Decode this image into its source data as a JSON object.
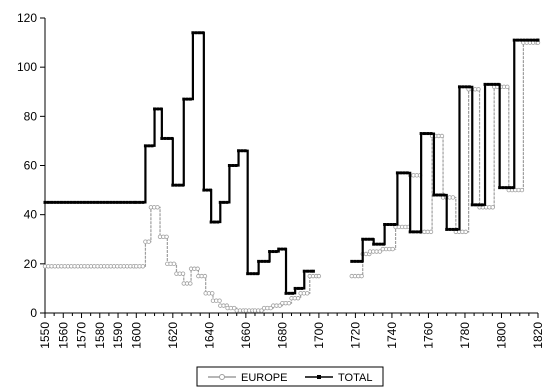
{
  "chart_data": {
    "type": "line",
    "title": "",
    "xlabel": "",
    "ylabel": "",
    "xlim": [
      1550,
      1820
    ],
    "ylim": [
      0,
      120
    ],
    "x_ticks": [
      1550,
      1560,
      1570,
      1580,
      1590,
      1600,
      1620,
      1640,
      1660,
      1680,
      1700,
      1720,
      1740,
      1760,
      1780,
      1800,
      1820
    ],
    "x_tick_labels": [
      "1550",
      "1560",
      "1570",
      "1580",
      "1590",
      "1600",
      "1620",
      "1640",
      "1660",
      "1680",
      "1700",
      "1720",
      "1740",
      "1760",
      "1780",
      "1800",
      "1820"
    ],
    "y_ticks": [
      0,
      20,
      40,
      60,
      80,
      100,
      120
    ],
    "y_tick_labels": [
      "0",
      "20",
      "40",
      "60",
      "80",
      "100",
      "120"
    ],
    "grid": false,
    "legend_position": "bottom",
    "step_style": "step",
    "series": [
      {
        "name": "EUROPE",
        "color": "#9e9e9e",
        "marker": "open-circle",
        "segments": [
          [
            {
              "x": 1550,
              "y": 19
            },
            {
              "x": 1600,
              "y": 19
            },
            {
              "x": 1605,
              "y": 29
            },
            {
              "x": 1608,
              "y": 43
            },
            {
              "x": 1613,
              "y": 31
            },
            {
              "x": 1617,
              "y": 20
            },
            {
              "x": 1622,
              "y": 16
            },
            {
              "x": 1626,
              "y": 12
            },
            {
              "x": 1630,
              "y": 18
            },
            {
              "x": 1634,
              "y": 15
            },
            {
              "x": 1638,
              "y": 8
            },
            {
              "x": 1642,
              "y": 5
            },
            {
              "x": 1646,
              "y": 3
            },
            {
              "x": 1650,
              "y": 2
            },
            {
              "x": 1655,
              "y": 1
            },
            {
              "x": 1660,
              "y": 1
            },
            {
              "x": 1665,
              "y": 1
            },
            {
              "x": 1670,
              "y": 2
            },
            {
              "x": 1675,
              "y": 3
            },
            {
              "x": 1680,
              "y": 4
            },
            {
              "x": 1685,
              "y": 6
            },
            {
              "x": 1690,
              "y": 8
            },
            {
              "x": 1695,
              "y": 15
            },
            {
              "x": 1700,
              "y": 15
            }
          ],
          [
            {
              "x": 1718,
              "y": 15
            },
            {
              "x": 1724,
              "y": 24
            },
            {
              "x": 1728,
              "y": 25
            },
            {
              "x": 1735,
              "y": 26
            },
            {
              "x": 1742,
              "y": 35
            },
            {
              "x": 1750,
              "y": 56
            },
            {
              "x": 1756,
              "y": 33
            },
            {
              "x": 1762,
              "y": 72
            },
            {
              "x": 1768,
              "y": 47
            },
            {
              "x": 1775,
              "y": 33
            },
            {
              "x": 1782,
              "y": 91
            },
            {
              "x": 1788,
              "y": 43
            },
            {
              "x": 1796,
              "y": 92
            },
            {
              "x": 1804,
              "y": 50
            },
            {
              "x": 1812,
              "y": 110
            },
            {
              "x": 1820,
              "y": 110
            }
          ]
        ]
      },
      {
        "name": "TOTAL",
        "color": "#000000",
        "marker": "filled-square",
        "segments": [
          [
            {
              "x": 1550,
              "y": 45
            },
            {
              "x": 1600,
              "y": 45
            },
            {
              "x": 1605,
              "y": 68
            },
            {
              "x": 1610,
              "y": 83
            },
            {
              "x": 1614,
              "y": 71
            },
            {
              "x": 1620,
              "y": 52
            },
            {
              "x": 1626,
              "y": 87
            },
            {
              "x": 1631,
              "y": 114
            },
            {
              "x": 1637,
              "y": 50
            },
            {
              "x": 1641,
              "y": 37
            },
            {
              "x": 1646,
              "y": 45
            },
            {
              "x": 1651,
              "y": 60
            },
            {
              "x": 1656,
              "y": 66
            },
            {
              "x": 1661,
              "y": 16
            },
            {
              "x": 1667,
              "y": 21
            },
            {
              "x": 1673,
              "y": 25
            },
            {
              "x": 1678,
              "y": 26
            },
            {
              "x": 1682,
              "y": 8
            },
            {
              "x": 1687,
              "y": 10
            },
            {
              "x": 1692,
              "y": 17
            },
            {
              "x": 1697,
              "y": 17
            }
          ],
          [
            {
              "x": 1718,
              "y": 21
            },
            {
              "x": 1724,
              "y": 30
            },
            {
              "x": 1730,
              "y": 28
            },
            {
              "x": 1736,
              "y": 36
            },
            {
              "x": 1743,
              "y": 57
            },
            {
              "x": 1750,
              "y": 33
            },
            {
              "x": 1756,
              "y": 73
            },
            {
              "x": 1763,
              "y": 48
            },
            {
              "x": 1770,
              "y": 34
            },
            {
              "x": 1777,
              "y": 92
            },
            {
              "x": 1784,
              "y": 44
            },
            {
              "x": 1791,
              "y": 93
            },
            {
              "x": 1799,
              "y": 51
            },
            {
              "x": 1807,
              "y": 111
            },
            {
              "x": 1820,
              "y": 111
            }
          ]
        ]
      }
    ]
  }
}
